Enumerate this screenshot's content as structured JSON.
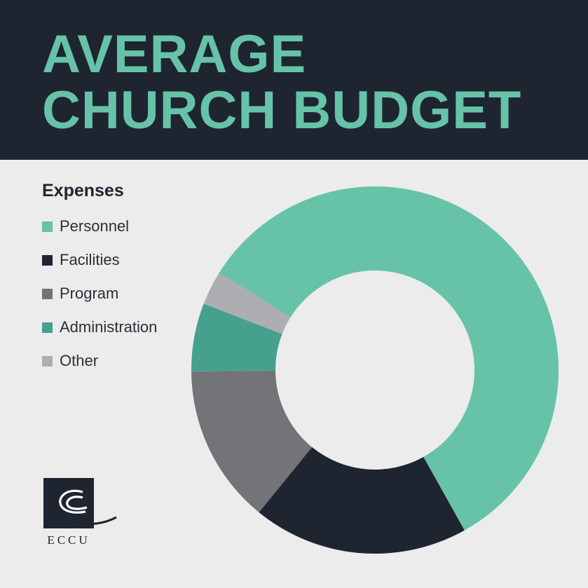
{
  "header": {
    "title_line1": "AVERAGE",
    "title_line2": "CHURCH BUDGET"
  },
  "legend": {
    "title": "Expenses"
  },
  "logo": {
    "text": "ECCU"
  },
  "colors": {
    "header_bg": "#1e2530",
    "accent": "#66c3a7",
    "page_bg": "#ececec"
  },
  "chart_data": {
    "type": "pie",
    "donut": true,
    "title": "AVERAGE CHURCH BUDGET",
    "legend_title": "Expenses",
    "legend_position": "left",
    "categories": [
      "Personnel",
      "Facilities",
      "Program",
      "Administration",
      "Other"
    ],
    "values": [
      58,
      19,
      14,
      6,
      3
    ],
    "colors": [
      "#66c3a7",
      "#1e2530",
      "#737378",
      "#45a08e",
      "#adadb2"
    ]
  }
}
